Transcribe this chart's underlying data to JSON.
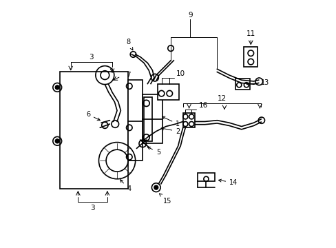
{
  "background_color": "#ffffff",
  "line_color": "#000000",
  "line_width": 1.2,
  "figsize": [
    4.89,
    3.6
  ],
  "dpi": 100,
  "xlim": [
    0,
    10
  ],
  "ylim": [
    0,
    10
  ]
}
